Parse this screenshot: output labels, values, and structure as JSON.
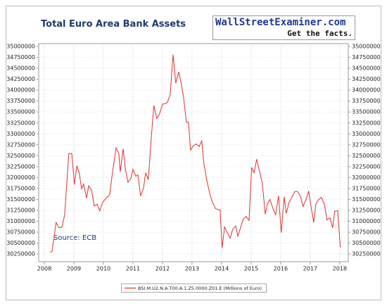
{
  "chart_data": {
    "type": "line",
    "title": "Total Euro Area Bank Assets",
    "logo": "WallStreetExaminer.com",
    "logo_tagline": "Get the facts.",
    "annotation": "Source: ECB",
    "x": [
      2008.19,
      2008.26,
      2008.4,
      2008.5,
      2008.6,
      2008.69,
      2008.83,
      2008.93,
      2009.02,
      2009.1,
      2009.19,
      2009.26,
      2009.33,
      2009.43,
      2009.5,
      2009.6,
      2009.69,
      2009.79,
      2009.88,
      2009.98,
      2010.12,
      2010.21,
      2010.31,
      2010.43,
      2010.52,
      2010.57,
      2010.67,
      2010.74,
      2010.83,
      2010.93,
      2011.0,
      2011.1,
      2011.17,
      2011.26,
      2011.36,
      2011.43,
      2011.52,
      2011.62,
      2011.71,
      2011.81,
      2011.9,
      2012.0,
      2012.1,
      2012.17,
      2012.26,
      2012.36,
      2012.45,
      2012.55,
      2012.64,
      2012.71,
      2012.81,
      2012.88,
      2012.95,
      2013.05,
      2013.14,
      2013.24,
      2013.33,
      2013.4,
      2013.5,
      2013.6,
      2013.69,
      2013.79,
      2013.88,
      2013.95,
      2014.02,
      2014.1,
      2014.19,
      2014.29,
      2014.38,
      2014.48,
      2014.55,
      2014.64,
      2014.74,
      2014.83,
      2014.93,
      2015.02,
      2015.1,
      2015.19,
      2015.29,
      2015.38,
      2015.48,
      2015.55,
      2015.64,
      2015.74,
      2015.83,
      2015.93,
      2016.02,
      2016.12,
      2016.19,
      2016.29,
      2016.38,
      2016.48,
      2016.57,
      2016.67,
      2016.76,
      2016.86,
      2016.95,
      2017.02,
      2017.12,
      2017.19,
      2017.29,
      2017.38,
      2017.48,
      2017.57,
      2017.67,
      2017.76,
      2017.83,
      2017.93,
      2018.02
    ],
    "series": [
      {
        "name": "BSI.M.U2.N.A.T00.A.1.Z5.0000.Z01.E (Millions of Euro)",
        "color": "#e03030",
        "values": [
          30290000,
          30310000,
          30970000,
          30850000,
          30870000,
          31150000,
          32550000,
          32550000,
          31840000,
          32270000,
          32080000,
          31740000,
          31850000,
          31530000,
          31810000,
          31710000,
          31350000,
          31390000,
          31240000,
          31440000,
          31550000,
          31600000,
          32130000,
          32680000,
          32560000,
          32130000,
          32660000,
          32210000,
          31890000,
          31980000,
          32190000,
          32030000,
          32060000,
          31580000,
          31760000,
          32110000,
          31950000,
          32920000,
          33650000,
          33350000,
          33450000,
          33680000,
          33690000,
          33730000,
          33890000,
          34810000,
          34160000,
          34420000,
          34130000,
          33850000,
          33270000,
          33270000,
          32630000,
          32730000,
          32770000,
          32710000,
          32840000,
          32320000,
          31940000,
          31630000,
          31440000,
          31290000,
          31270000,
          31260000,
          30390000,
          30870000,
          30740000,
          30610000,
          30820000,
          30890000,
          30660000,
          30850000,
          31060000,
          31110000,
          31020000,
          32230000,
          32110000,
          32420000,
          32130000,
          31870000,
          31160000,
          31400000,
          31500000,
          31290000,
          31150000,
          31580000,
          30740000,
          31560000,
          31180000,
          31440000,
          31550000,
          31680000,
          31680000,
          31580000,
          31340000,
          31500000,
          31690000,
          31370000,
          30970000,
          31390000,
          31500000,
          31550000,
          31390000,
          31030000,
          31080000,
          30850000,
          31230000,
          31240000,
          30400000
        ]
      }
    ],
    "xlim": [
      2007.81,
      2018.29
    ],
    "xticks": [
      2008,
      2009,
      2010,
      2011,
      2012,
      2013,
      2014,
      2015,
      2016,
      2017,
      2018
    ],
    "ylim": [
      30075000,
      35065000
    ],
    "yticks": [
      30250000,
      30500000,
      30750000,
      31000000,
      31250000,
      31500000,
      31750000,
      32000000,
      32250000,
      32500000,
      32750000,
      33000000,
      33250000,
      33500000,
      33750000,
      34000000,
      34250000,
      34500000,
      34750000,
      35000000
    ],
    "grid": true
  }
}
